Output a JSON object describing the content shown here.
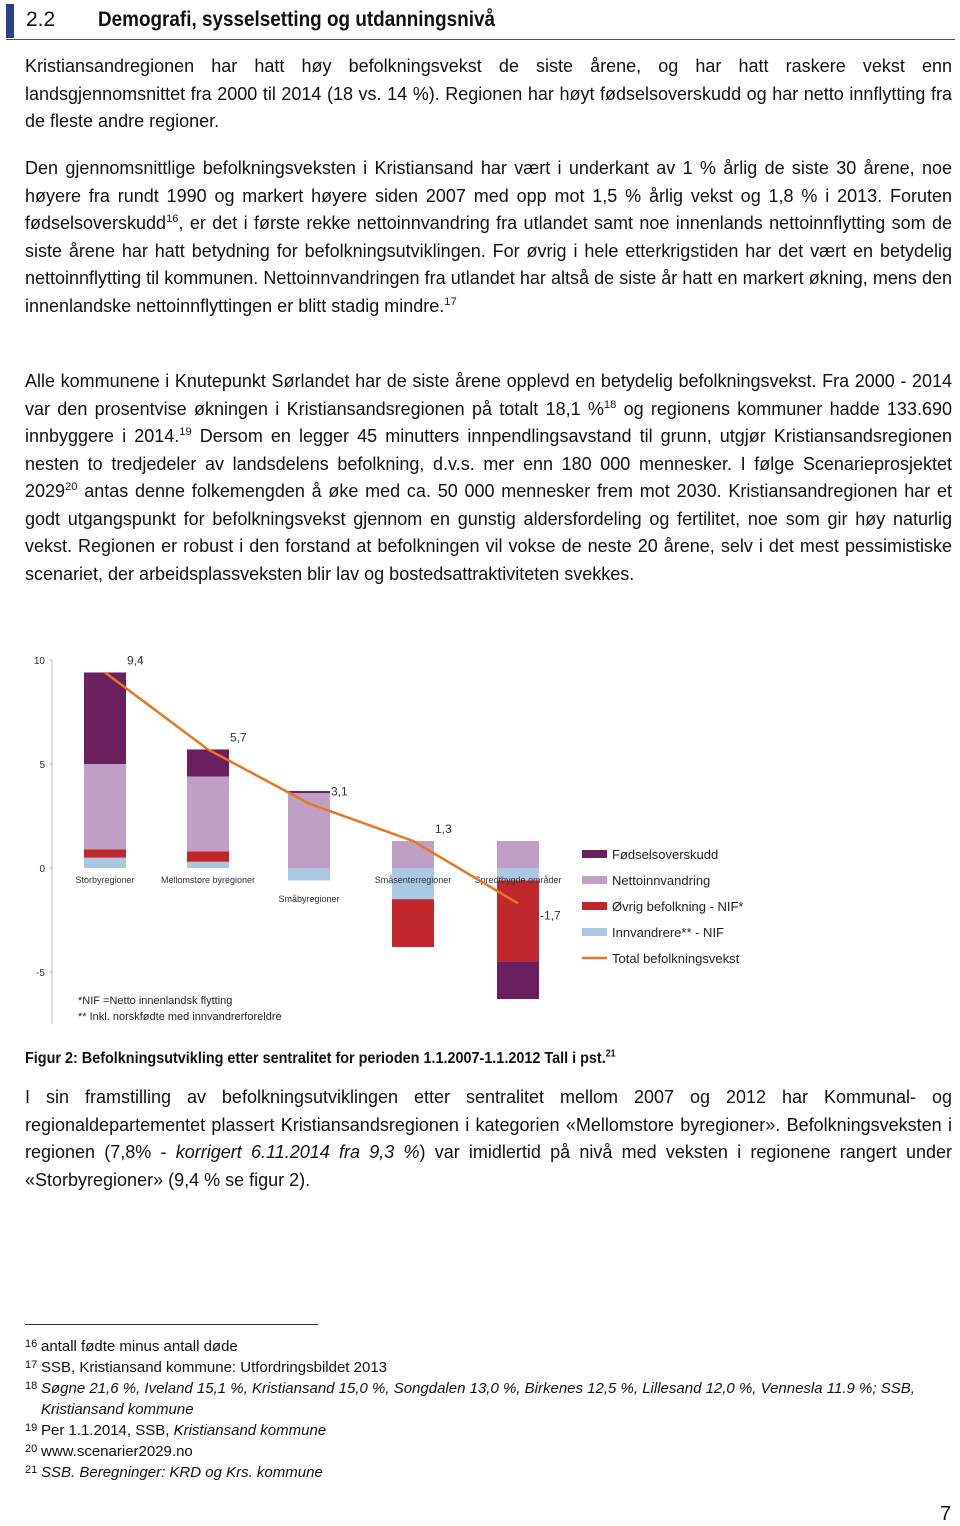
{
  "header": {
    "number": "2.2",
    "title": "Demografi, sysselsetting og utdanningsnivå"
  },
  "paragraphs": [
    [
      "Kristiansandregionen har hatt høy befolkningsvekst de siste årene, og har hatt raskere vekst enn landsgjennomsnittet fra 2000 til 2014 (18 vs. 14 %). Regionen har høyt fødselsoverskudd og har netto innflytting fra de fleste andre regioner."
    ],
    [
      "Den gjennomsnittlige befolkningsveksten i Kristiansand har vært i underkant av 1 % årlig de siste 30 årene, noe høyere fra rundt 1990 og markert høyere siden 2007 med opp mot 1,5 % årlig vekst og 1,8 % i 2013. Foruten fødselsoverskudd",
      {
        "sup": "16"
      },
      ", er det i første rekke nettoinnvandring fra utlandet samt noe innenlands nettoinnflytting som de siste årene har hatt betydning for befolkningsutviklingen. For øvrig i hele etterkrigstiden har det vært en betydelig nettoinnflytting til kommunen. Nettoinnvandringen fra utlandet har altså de siste år hatt en markert økning, mens den innenlandske nettoinnflyttingen er blitt stadig mindre.",
      {
        "sup": "17"
      }
    ],
    [
      "Alle kommunene i Knutepunkt Sørlandet har de siste årene opplevd en betydelig befolkningsvekst. Fra 2000 - 2014 var den prosentvise økningen i Kristiansandsregionen på totalt 18,1 %",
      {
        "sup": "18"
      },
      " og regionens kommuner hadde 133.690 innbyggere i 2014.",
      {
        "sup": "19"
      },
      " Dersom en legger 45 minutters innpendlingsavstand til grunn, utgjør Kristiansandsregionen nesten to tredjedeler av landsdelens befolkning, d.v.s. mer enn 180 000 mennesker. I følge Scenarieprosjektet 2029",
      {
        "sup": "20"
      },
      " antas denne folkemengden å øke med ca. 50 000 mennesker frem mot 2030. Kristiansandregionen har et godt utgangspunkt for befolkningsvekst gjennom en gunstig aldersfordeling og fertilitet, noe som gir høy naturlig vekst. Regionen er robust i den forstand at befolkningen vil vokse de neste 20 årene, selv i det mest pessimistiske scenariet, der arbeidsplassveksten blir lav og bostedsattraktiviteten svekkes."
    ],
    [
      "I sin framstilling av befolkningsutviklingen etter sentralitet mellom 2007 og 2012 har Kommunal- og regionaldepartementet plassert Kristiansandsregionen i kategorien «Mellomstore byregioner». Befolkningsveksten i regionen (7,8% - ",
      {
        "em": "korrigert 6.11.2014 fra 9,3 %"
      },
      ") var imidlertid på nivå med veksten i regionene rangert under «Storbyregioner» (9,4 % se figur 2)."
    ]
  ],
  "chart_data": {
    "type": "stacked-bar-line",
    "categories": [
      "Storbyregioner",
      "Mellomstore byregioner",
      "Småbyregioner",
      "Småsenterregioner",
      "Spredtbygde områder"
    ],
    "series": [
      {
        "name": "Fødselsoverskudd",
        "color": "#6b1f5e",
        "values": [
          4.4,
          1.3,
          0.1,
          0,
          -1.8
        ]
      },
      {
        "name": "Nettoinnvandring",
        "color": "#bf9fc4",
        "values": [
          4.1,
          3.6,
          3.6,
          1.3,
          1.3
        ]
      },
      {
        "name": "Øvrig befolkning - NIF*",
        "color": "#c0272d",
        "values": [
          0.4,
          0.5,
          0,
          -2.3,
          -3.9
        ]
      },
      {
        "name": "Innvandrere** - NIF",
        "color": "#a9c9e3",
        "values": [
          0.5,
          0.3,
          -0.6,
          -1.5,
          -0.6
        ]
      },
      {
        "name": "Total befolkningsvekst",
        "color": "#e8761f",
        "type": "line",
        "values": [
          9.4,
          5.7,
          3.1,
          1.3,
          -1.7
        ],
        "value_labels": [
          "9,4",
          "5,7",
          "3,1",
          "1,3",
          "-1,7"
        ]
      }
    ],
    "ylim": [
      -7.5,
      10
    ],
    "yticks": [
      10,
      5,
      0,
      -5
    ],
    "annotations": [
      "*NIF =Netto innenlandsk flytting",
      "** Inkl. norskfødte med innvandrerforeldre"
    ]
  },
  "figure_caption": {
    "text": "Figur 2: Befolkningsutvikling etter sentralitet for perioden 1.1.2007-1.1.2012 Tall i pst.",
    "sup": "21"
  },
  "footnotes": [
    {
      "num": "16",
      "parts": [
        "antall fødte minus antall døde"
      ]
    },
    {
      "num": "17",
      "parts": [
        "SSB, Kristiansand kommune: Utfordringsbildet 2013"
      ]
    },
    {
      "num": "18",
      "parts": [
        {
          "em": "Søgne 21,6 %, Iveland 15,1 %, Kristiansand 15,0 %, Songdalen 13,0 %, Birkenes 12,5 %, Lillesand 12,0 %, Vennesla 11.9 %; SSB, Kristiansand kommune"
        }
      ]
    },
    {
      "num": "19",
      "parts": [
        "Per 1.1.2014, SSB, ",
        {
          "em": "Kristiansand kommune"
        }
      ]
    },
    {
      "num": "20",
      "parts": [
        "www.scenarier2029.no"
      ]
    },
    {
      "num": "21",
      "parts": [
        {
          "em": "SSB. Beregninger: KRD og Krs. kommune"
        }
      ]
    }
  ],
  "page_number": "7"
}
